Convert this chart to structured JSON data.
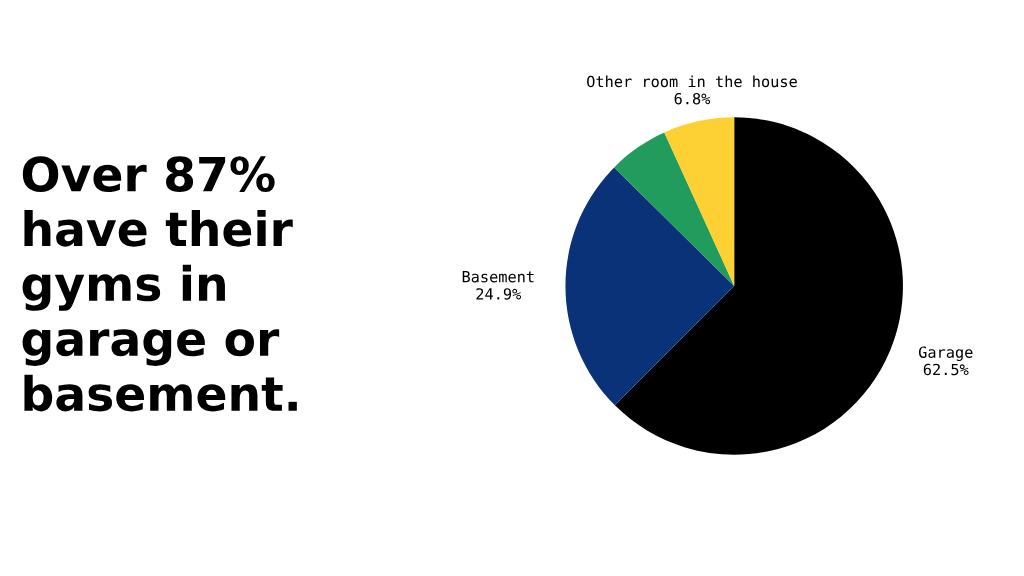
{
  "chart_data": {
    "type": "pie",
    "title": "Over 87%\nhave their\ngyms in\ngarage or\nbasement.",
    "categories": [
      "Garage",
      "Basement",
      null,
      "Other room in the house"
    ],
    "values": [
      62.5,
      24.9,
      5.8,
      6.8
    ],
    "colors": [
      "#000000",
      "#0a3278",
      "#229c5c",
      "#fdd034"
    ],
    "value_labels": [
      "62.5%",
      "24.9%",
      null,
      "6.8%"
    ],
    "legend": false
  }
}
